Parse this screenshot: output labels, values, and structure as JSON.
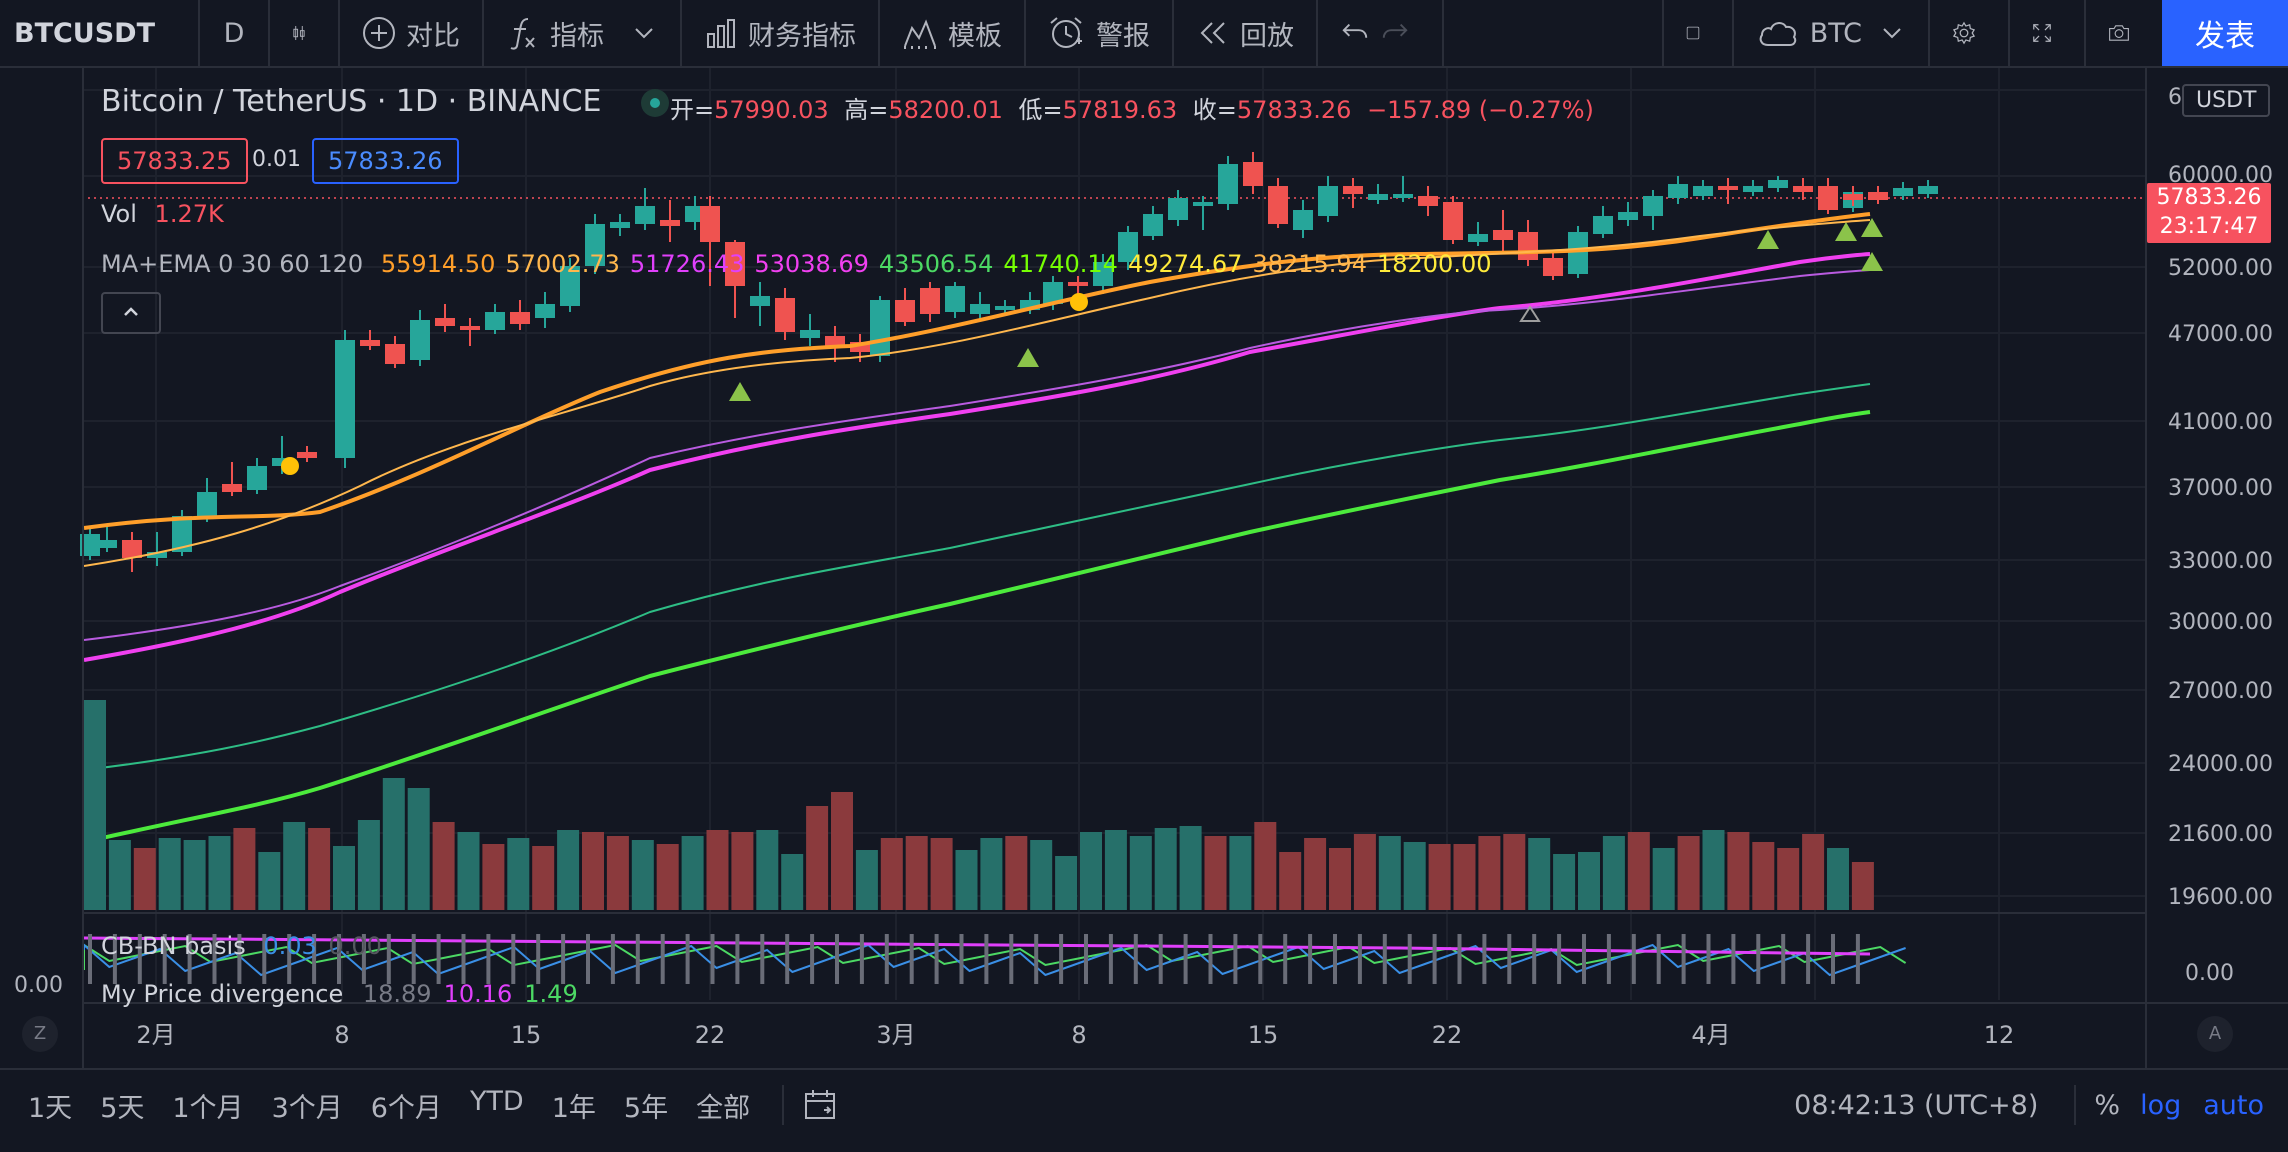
{
  "toolbar": {
    "symbol": "BTCUSDT",
    "interval": "D",
    "compare": "对比",
    "indicators": "指标",
    "financials": "财务指标",
    "templates": "模板",
    "alert": "警报",
    "replay": "回放",
    "watch_symbol": "BTC",
    "publish": "发表"
  },
  "legend": {
    "title": "Bitcoin / TetherUS · 1D · BINANCE",
    "open_label": "开=",
    "open": "57990.03",
    "high_label": "高=",
    "high": "58200.01",
    "low_label": "低=",
    "low": "57819.63",
    "close_label": "收=",
    "close": "57833.26",
    "change": "−157.89 (−0.27%)",
    "bid": "57833.25",
    "spread": "0.01",
    "ask": "57833.26",
    "vol_label": "Vol",
    "vol_value": "1.27K",
    "ma_label": "MA+EMA 0 30 60 120",
    "ma_values": [
      "55914.50",
      "57002.73",
      "51726.43",
      "53038.69",
      "43506.54",
      "41740.14",
      "49274.67",
      "38215.94",
      "18200.00"
    ],
    "ma_colors": [
      "#ff9f2a",
      "#ffb74d",
      "#e040fb",
      "#f040f0",
      "#4cd964",
      "#76ff03",
      "#ffeb3b",
      "#ffb74d",
      "#ffeb3b"
    ],
    "cb_label": "CB-BN basis",
    "cb_value": "0.03",
    "cb_value2": "0.00",
    "div_label": "My Price divergence",
    "div_values": [
      "18.89",
      "10.16",
      "1.49"
    ],
    "div_colors": [
      "#787b86",
      "#e040fb",
      "#4cd964"
    ]
  },
  "price_axis": {
    "currency": "USDT",
    "ticks": [
      "6",
      "60000.00",
      "52000.00",
      "47000.00",
      "41000.00",
      "37000.00",
      "33000.00",
      "30000.00",
      "27000.00",
      "24000.00",
      "21600.00",
      "19600.00"
    ],
    "last_price": "57833.26",
    "countdown": "23:17:47",
    "lower_tick": "0.00",
    "left_tick": "0.00"
  },
  "time_axis": {
    "ticks": [
      "2月",
      "8",
      "15",
      "22",
      "3月",
      "8",
      "15",
      "22",
      "4月",
      "12"
    ]
  },
  "bottombar": {
    "ranges": [
      "1天",
      "5天",
      "1个月",
      "3个月",
      "6个月",
      "YTD",
      "1年",
      "5年",
      "全部"
    ],
    "clock": "08:42:13 (UTC+8)",
    "percent": "%",
    "log": "log",
    "auto": "auto",
    "z_label": "Z",
    "a_label": "A"
  },
  "colors": {
    "up": "#26a69a",
    "down": "#ef5350",
    "background": "#131722",
    "accent": "#2962ff"
  }
}
